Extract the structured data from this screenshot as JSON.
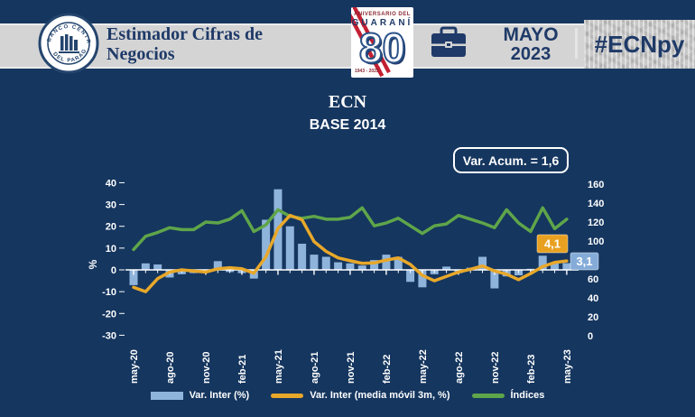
{
  "header": {
    "title_line1": "Estimador Cifras de",
    "title_line2": "Negocios",
    "seal_name": "banco-central-del-paraguay-seal",
    "anniversary": {
      "label_top": "ANIVERSARIO DEL",
      "label_name": "GUARANÍ",
      "number": "80",
      "years": "1943 - 2023"
    },
    "month": "MAYO",
    "year": "2023",
    "hashtag": "#ECNpy"
  },
  "chart": {
    "title": "ECN",
    "subtitle": "BASE 2014",
    "annotation": "Var. Acum. = 1,6",
    "pct_axis_label": "%"
  },
  "colors": {
    "background": "#15365F",
    "bar_blue": "#8FB4DC",
    "line_orange": "#E8A82A",
    "line_green": "#5FA54A",
    "label_gold": "#E8A020",
    "navy_text": "#1F3A68",
    "white": "#FFFFFF"
  },
  "chart_data": {
    "type": "combo",
    "x": [
      "may-20",
      "jun-20",
      "jul-20",
      "ago-20",
      "sep-20",
      "oct-20",
      "nov-20",
      "dic-20",
      "ene-21",
      "feb-21",
      "mar-21",
      "abr-21",
      "may-21",
      "jun-21",
      "jul-21",
      "ago-21",
      "sep-21",
      "oct-21",
      "nov-21",
      "dic-21",
      "ene-22",
      "feb-22",
      "mar-22",
      "abr-22",
      "may-22",
      "jun-22",
      "jul-22",
      "ago-22",
      "sep-22",
      "oct-22",
      "nov-22",
      "dic-22",
      "ene-23",
      "feb-23",
      "mar-23",
      "abr-23",
      "may-23"
    ],
    "x_tick_step": 3,
    "x_ticks_shown": [
      "may-20",
      "ago-20",
      "nov-20",
      "feb-21",
      "may-21",
      "ago-21",
      "nov-21",
      "feb-22",
      "may-22",
      "ago-22",
      "nov-22",
      "feb-23",
      "may-23"
    ],
    "series": [
      {
        "name": "Var. Inter (%)",
        "type": "bar",
        "axis": "left",
        "color": "#8FB4DC",
        "values": [
          -7,
          3,
          2.5,
          -3.5,
          -2,
          -1.5,
          -0.5,
          4,
          -1,
          -1.5,
          -4,
          23,
          37,
          20,
          12,
          7,
          6,
          3.5,
          3,
          2,
          4.5,
          7,
          6,
          -5.5,
          -8,
          -2,
          1.5,
          -1.5,
          1,
          6,
          -8.5,
          -3,
          -2.5,
          0.5,
          6.5,
          3.3,
          3.1
        ]
      },
      {
        "name": "Var. Inter (media móvil 3m, %)",
        "type": "line",
        "axis": "left",
        "color": "#E8A82A",
        "values": [
          -8,
          -10,
          -4,
          -1,
          0,
          -0.5,
          -1,
          0.5,
          1,
          0.5,
          -1.5,
          6,
          19,
          25,
          23,
          13,
          8.5,
          5.5,
          4.2,
          3,
          3.2,
          4.5,
          5.5,
          2.5,
          -2.5,
          -5,
          -3,
          -1,
          0.3,
          1.8,
          -0.5,
          -2,
          -4.5,
          -1.7,
          1.5,
          3.4,
          4.1
        ]
      },
      {
        "name": "Índices",
        "type": "line",
        "axis": "right",
        "color": "#5FA54A",
        "values": [
          91,
          105,
          109,
          114,
          112,
          112,
          120,
          119,
          123,
          132,
          110,
          117,
          133,
          126,
          124,
          126,
          123,
          123,
          125,
          135,
          116,
          119,
          124,
          116,
          108,
          116,
          118,
          127,
          123,
          119,
          114,
          133,
          119,
          110,
          135,
          113,
          123
        ]
      }
    ],
    "left_axis": {
      "min": -30,
      "max": 40,
      "step": 10,
      "label": "%",
      "ticks": [
        40,
        30,
        20,
        10,
        0,
        -10,
        -20,
        -30
      ]
    },
    "right_axis": {
      "min": 0,
      "max": 160,
      "step": 20,
      "ticks": [
        160,
        140,
        120,
        100,
        80,
        60,
        40,
        20,
        0
      ]
    },
    "end_labels": [
      {
        "text": "4,1",
        "series": "Var. Inter (media móvil 3m, %)",
        "color": "#E8A020"
      },
      {
        "text": "3,1",
        "series": "Var. Inter (%)",
        "color": "#85ACD8"
      }
    ],
    "annotation": "Var. Acum. = 1,6",
    "legend_position": "bottom",
    "grid": false
  }
}
